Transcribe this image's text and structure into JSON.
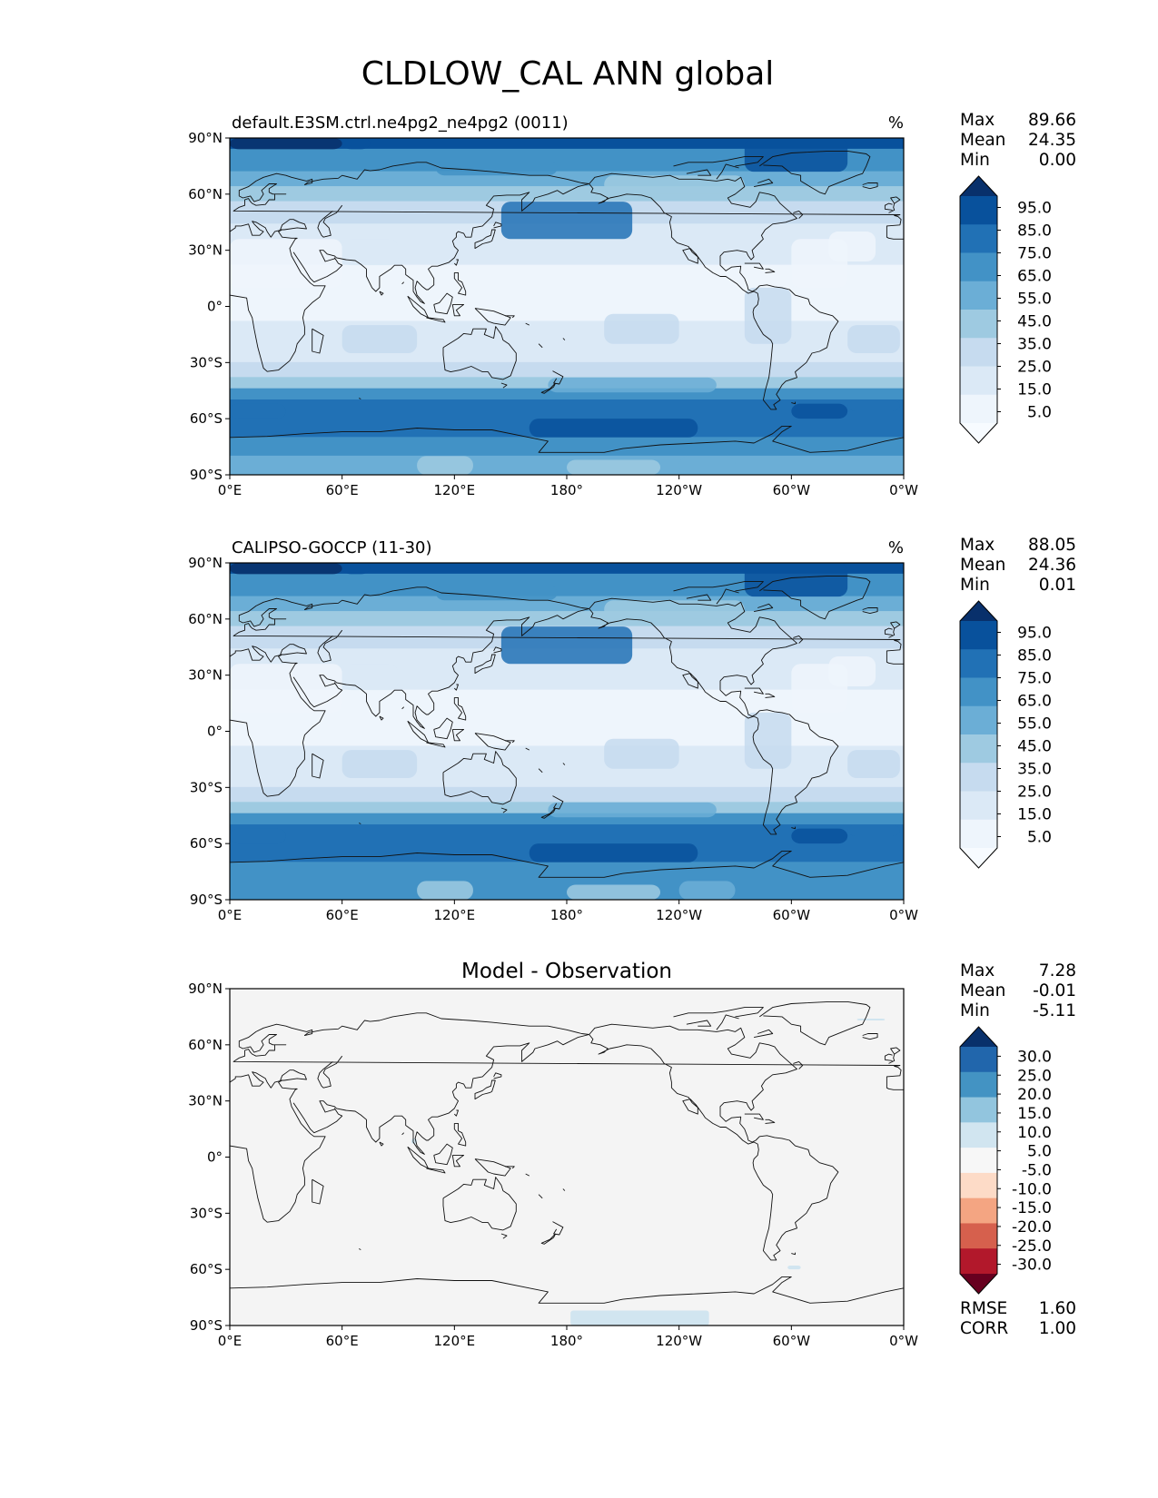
{
  "figure": {
    "title": "CLDLOW_CAL ANN global"
  },
  "axes": {
    "lat_ticks": [
      "90°N",
      "60°N",
      "30°N",
      "0°",
      "30°S",
      "60°S",
      "90°S"
    ],
    "lon_ticks": [
      "0°E",
      "60°E",
      "120°E",
      "180°",
      "120°W",
      "60°W",
      "0°W"
    ]
  },
  "panels": [
    {
      "title_left": "default.E3SM.ctrl.ne4pg2_ne4pg2 (0011)",
      "title_right": "%",
      "title_center": "",
      "stats": [
        {
          "label": "Max",
          "value": "89.66"
        },
        {
          "label": "Mean",
          "value": "24.35"
        },
        {
          "label": "Min",
          "value": "0.00"
        }
      ],
      "colorbar": {
        "labels": [
          "95.0",
          "85.0",
          "75.0",
          "65.0",
          "55.0",
          "45.0",
          "35.0",
          "25.0",
          "15.0",
          "5.0"
        ],
        "colors": [
          "#08306b",
          "#08519c",
          "#2171b5",
          "#4292c6",
          "#6baed6",
          "#9ecae1",
          "#c6dbef",
          "#dbe9f6",
          "#eef5fc",
          "#f7fbff"
        ]
      },
      "footer": []
    },
    {
      "title_left": "CALIPSO-GOCCP (11-30)",
      "title_right": "%",
      "title_center": "",
      "stats": [
        {
          "label": "Max",
          "value": "88.05"
        },
        {
          "label": "Mean",
          "value": "24.36"
        },
        {
          "label": "Min",
          "value": "0.01"
        }
      ],
      "colorbar": {
        "labels": [
          "95.0",
          "85.0",
          "75.0",
          "65.0",
          "55.0",
          "45.0",
          "35.0",
          "25.0",
          "15.0",
          "5.0"
        ],
        "colors": [
          "#08306b",
          "#08519c",
          "#2171b5",
          "#4292c6",
          "#6baed6",
          "#9ecae1",
          "#c6dbef",
          "#dbe9f6",
          "#eef5fc",
          "#f7fbff"
        ]
      },
      "footer": []
    },
    {
      "title_left": "",
      "title_right": "",
      "title_center": "Model - Observation",
      "stats": [
        {
          "label": "Max",
          "value": "7.28"
        },
        {
          "label": "Mean",
          "value": "-0.01"
        },
        {
          "label": "Min",
          "value": "-5.11"
        }
      ],
      "colorbar": {
        "labels": [
          "30.0",
          "25.0",
          "20.0",
          "15.0",
          "10.0",
          "5.0",
          "-5.0",
          "-10.0",
          "-15.0",
          "-20.0",
          "-25.0",
          "-30.0"
        ],
        "colors": [
          "#08306b",
          "#2166ac",
          "#4393c3",
          "#92c5de",
          "#d1e5f0",
          "#f7f7f7",
          "#fddbc7",
          "#f4a582",
          "#d6604d",
          "#b2182b",
          "#67001f"
        ]
      },
      "footer": [
        {
          "label": "RMSE",
          "value": "1.60"
        },
        {
          "label": "CORR",
          "value": "1.00"
        }
      ]
    }
  ],
  "chart_data": [
    {
      "type": "heatmap",
      "title": "default.E3SM.ctrl.ne4pg2_ne4pg2 (0011)",
      "units": "%",
      "projection": "PlateCarree",
      "lat_range": [
        -90,
        90
      ],
      "lon_range": [
        0,
        360
      ],
      "color_levels": [
        5,
        15,
        25,
        35,
        45,
        55,
        65,
        75,
        85,
        95
      ],
      "zonal_profile": {
        "lat": [
          90,
          80,
          70,
          60,
          50,
          40,
          30,
          20,
          10,
          0,
          -10,
          -20,
          -30,
          -40,
          -50,
          -60,
          -70,
          -80,
          -90
        ],
        "value": [
          68,
          62,
          50,
          42,
          45,
          34,
          22,
          14,
          13,
          12,
          15,
          17,
          20,
          40,
          58,
          66,
          60,
          50,
          45
        ]
      },
      "stats": {
        "max": 89.66,
        "mean": 24.35,
        "min": 0.0
      }
    },
    {
      "type": "heatmap",
      "title": "CALIPSO-GOCCP (11-30)",
      "units": "%",
      "projection": "PlateCarree",
      "lat_range": [
        -90,
        90
      ],
      "lon_range": [
        0,
        360
      ],
      "color_levels": [
        5,
        15,
        25,
        35,
        45,
        55,
        65,
        75,
        85,
        95
      ],
      "zonal_profile": {
        "lat": [
          90,
          80,
          70,
          60,
          50,
          40,
          30,
          20,
          10,
          0,
          -10,
          -20,
          -30,
          -40,
          -50,
          -60,
          -70,
          -80,
          -90
        ],
        "value": [
          70,
          62,
          48,
          42,
          46,
          33,
          21,
          14,
          13,
          12,
          15,
          17,
          21,
          41,
          58,
          66,
          60,
          52,
          50
        ]
      },
      "stats": {
        "max": 88.05,
        "mean": 24.36,
        "min": 0.01
      }
    },
    {
      "type": "heatmap",
      "title": "Model - Observation",
      "projection": "PlateCarree",
      "lat_range": [
        -90,
        90
      ],
      "lon_range": [
        0,
        360
      ],
      "color_levels": [
        -30,
        -25,
        -20,
        -15,
        -10,
        -5,
        5,
        10,
        15,
        20,
        25,
        30
      ],
      "zonal_profile": {
        "lat": [
          90,
          60,
          30,
          0,
          -30,
          -60,
          -90
        ],
        "value": [
          0,
          0,
          0,
          0,
          0,
          0,
          0
        ]
      },
      "stats": {
        "max": 7.28,
        "mean": -0.01,
        "min": -5.11,
        "rmse": 1.6,
        "corr": 1.0
      }
    }
  ]
}
